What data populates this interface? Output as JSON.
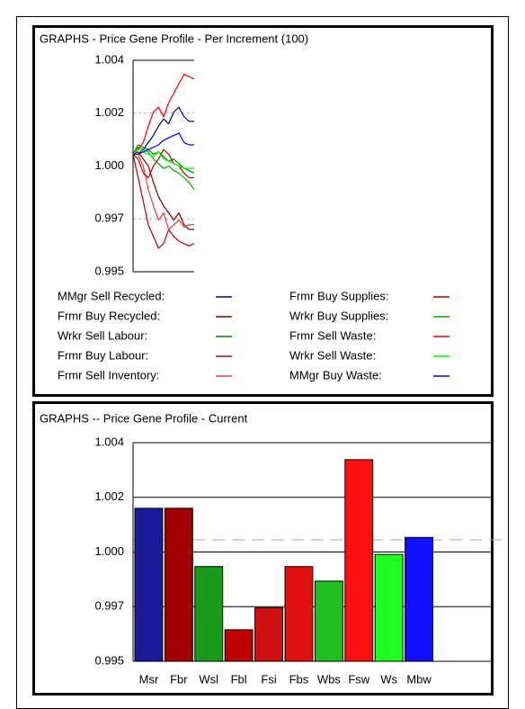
{
  "chart_data": [
    {
      "type": "line",
      "title": "GRAPHS - Price Gene Profile - Per Increment (100)",
      "categories": [
        null,
        null,
        null,
        null,
        null,
        null,
        null,
        null,
        null,
        null,
        null,
        null,
        null
      ],
      "ylim": [
        0.995,
        1.004
      ],
      "yticks": [
        {
          "value": 1.004,
          "label": "1.004"
        },
        {
          "value": 1.00175,
          "label": "1.002"
        },
        {
          "value": 0.9995,
          "label": "1.000"
        },
        {
          "value": 0.99725,
          "label": "0.997"
        },
        {
          "value": 0.995,
          "label": "0.995"
        }
      ],
      "reference_lines": [
        1.00175,
        0.99725
      ],
      "series": [
        {
          "name": "MMgr Sell Recycled:",
          "color": "#000080",
          "values": [
            1.0,
            1.0,
            1.0002,
            1.0005,
            1.0008,
            1.0012,
            1.0015,
            1.0013,
            1.0018,
            1.002,
            1.0016,
            1.0014,
            1.0014
          ]
        },
        {
          "name": "Frmr Buy Recycled:",
          "color": "#800000",
          "values": [
            1.0,
            1.0001,
            0.9998,
            0.9995,
            0.9988,
            0.9982,
            0.9978,
            0.9975,
            0.9972,
            0.9975,
            0.997,
            0.9968,
            0.9968
          ]
        },
        {
          "name": "Wrkr Sell Labour:",
          "color": "#008000",
          "values": [
            1.0,
            1.0004,
            1.0003,
            1.0002,
            1.0,
            1.0001,
            0.9999,
            0.9997,
            0.9998,
            0.9996,
            0.9994,
            0.9993,
            0.9992
          ]
        },
        {
          "name": "Frmr Buy Labour:",
          "color": "#c00000",
          "values": [
            1.0,
            0.999,
            0.998,
            0.997,
            0.9965,
            0.996,
            0.9962,
            0.9968,
            0.9965,
            0.9963,
            0.9962,
            0.9961,
            0.9962
          ]
        },
        {
          "name": "Frmr Sell Inventory:",
          "color": "#e04040",
          "values": [
            1.0,
            1.0,
            0.9995,
            0.9985,
            0.9978,
            0.9972,
            0.9975,
            0.9968,
            0.997,
            0.9972,
            0.9969,
            0.997,
            0.997
          ]
        },
        {
          "name": "Frmr Buy Supplies:",
          "color": "#b00000",
          "values": [
            1.0,
            0.9998,
            0.9992,
            0.999,
            0.9995,
            0.9998,
            1.0002,
            1.0,
            0.9996,
            0.9995,
            0.9992,
            0.999,
            0.999
          ]
        },
        {
          "name": "Wrkr Buy Supplies:",
          "color": "#00b000",
          "values": [
            1.0,
            1.0003,
            1.0002,
            1.0001,
            0.9998,
            0.9996,
            0.9994,
            0.9995,
            0.9993,
            0.9992,
            0.999,
            0.9988,
            0.9985
          ]
        },
        {
          "name": "Frmr Sell Waste:",
          "color": "#ff0000",
          "values": [
            1.0,
            1.0002,
            1.0005,
            1.0012,
            1.0018,
            1.002,
            1.0016,
            1.0022,
            1.0026,
            1.003,
            1.0034,
            1.0033,
            1.0032
          ]
        },
        {
          "name": "Wrkr Sell Waste:",
          "color": "#00ff00",
          "values": [
            1.0,
            1.0002,
            1.0001,
            1.0,
            0.9999,
            1.0001,
            0.9998,
            0.9997,
            0.9996,
            0.9995,
            0.9994,
            0.9994,
            0.9994
          ]
        },
        {
          "name": "MMgr Buy Waste:",
          "color": "#0000ff",
          "values": [
            1.0,
            1.0,
            1.0001,
            1.0002,
            1.0003,
            1.0004,
            1.0006,
            1.0007,
            1.0008,
            1.0009,
            1.0005,
            1.0004,
            1.0004
          ]
        }
      ]
    },
    {
      "type": "bar",
      "title": "GRAPHS -- Price Gene Profile - Current",
      "categories": [
        "Msr",
        "Fbr",
        "Wsl",
        "Fbl",
        "Fsi",
        "Fbs",
        "Wbs",
        "Fsw",
        "Ws",
        "Mbw"
      ],
      "values": [
        1.0013,
        1.0013,
        0.9989,
        0.9963,
        0.9972,
        0.9989,
        0.9983,
        1.0033,
        0.9994,
        1.0001
      ],
      "colors": [
        "#1a1a9a",
        "#a00000",
        "#1a9a1a",
        "#c00000",
        "#d01010",
        "#e01010",
        "#20c020",
        "#ff1010",
        "#20ff20",
        "#1010ff"
      ],
      "ylim": [
        0.995,
        1.004
      ],
      "yticks": [
        {
          "value": 1.004,
          "label": "1.004"
        },
        {
          "value": 1.00175,
          "label": "1.002"
        },
        {
          "value": 0.9995,
          "label": "1.000"
        },
        {
          "value": 0.99725,
          "label": "0.997"
        },
        {
          "value": 0.995,
          "label": "0.995"
        }
      ],
      "grid": true,
      "reference_lines": [
        1.0
      ]
    }
  ]
}
